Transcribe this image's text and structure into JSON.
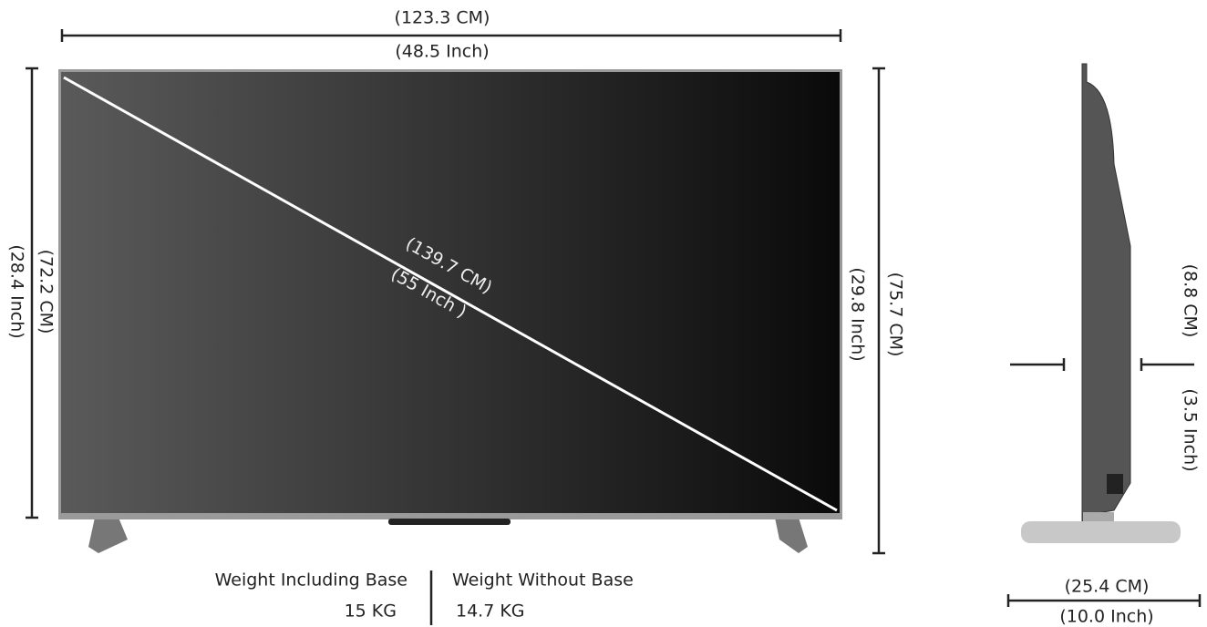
{
  "front": {
    "width_cm": "(123.3 CM)",
    "width_inch": "(48.5 Inch)",
    "height_cm": "(72.2 CM)",
    "height_inch": "(28.4 Inch)",
    "diagonal_cm": "(139.7  CM)",
    "diagonal_inch": "(55 Inch )",
    "total_height_inch": "(29.8 Inch)",
    "total_height_cm": "(75.7 CM)"
  },
  "side": {
    "depth_cm": "(8.8 CM)",
    "depth_inch": "(3.5 Inch)",
    "base_cm": "(25.4 CM)",
    "base_inch": "(10.0 Inch)"
  },
  "weight": {
    "with_base_label": "Weight Including Base",
    "with_base_value": "15 KG",
    "without_base_label": "Weight Without Base",
    "without_base_value": "14.7 KG"
  }
}
